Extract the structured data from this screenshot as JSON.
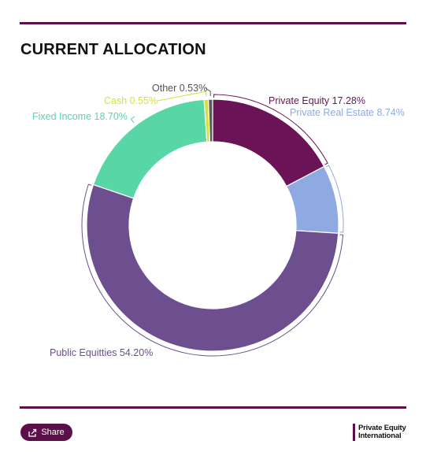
{
  "header": {
    "title": "CURRENT ALLOCATION"
  },
  "chart_data": {
    "type": "pie",
    "variant": "donut",
    "title": "CURRENT ALLOCATION",
    "slices": [
      {
        "label": "Private Equity",
        "value": 17.28,
        "display": "Private Equity 17.28%",
        "color": "#6a1357"
      },
      {
        "label": "Private Real Estate",
        "value": 8.74,
        "display": "Private Real Estate 8.74%",
        "color": "#8faae2"
      },
      {
        "label": "Public Equitties",
        "value": 54.2,
        "display": "Public Equitties 54.20%",
        "color": "#6d4f90"
      },
      {
        "label": "Fixed Income",
        "value": 18.7,
        "display": "Fixed Income 18.70%",
        "color": "#58d6a6"
      },
      {
        "label": "Cash",
        "value": 0.55,
        "display": "Cash 0.55%",
        "color": "#d6e23a"
      },
      {
        "label": "Other",
        "value": 0.53,
        "display": "Other 0.53%",
        "color": "#5a5a5a"
      }
    ],
    "legend": "none",
    "labels": "outside"
  },
  "footer": {
    "share_label": "Share",
    "share_icon": "share-icon",
    "logo_line1": "Private Equity",
    "logo_line2": "International"
  }
}
